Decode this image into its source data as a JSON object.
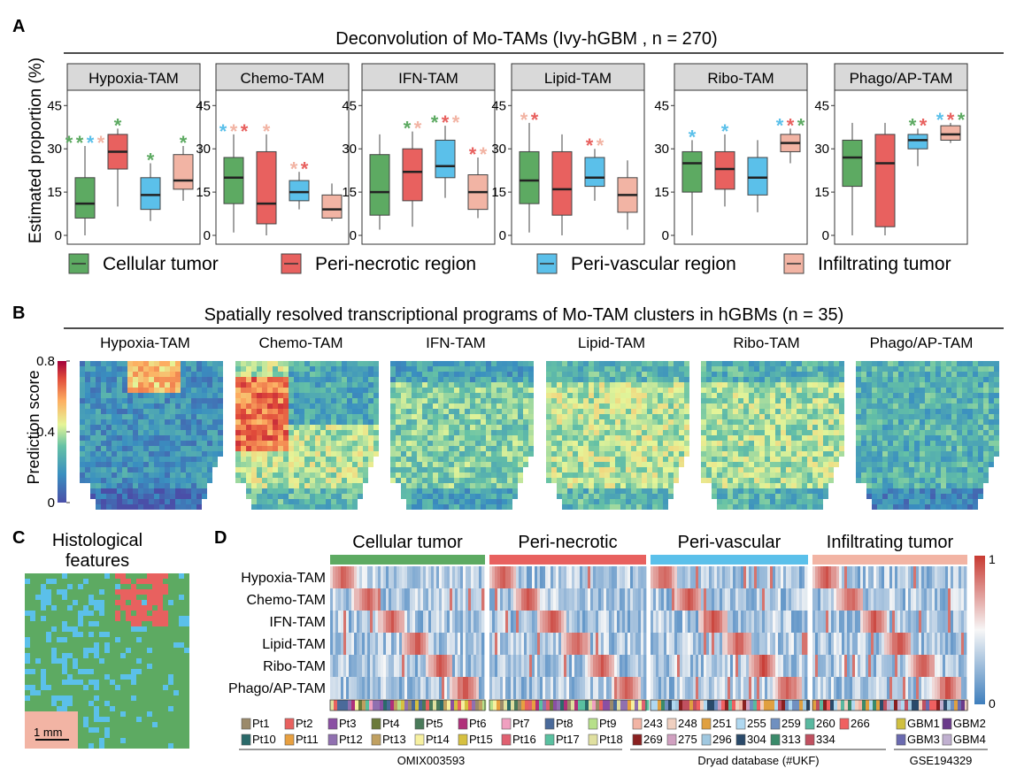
{
  "panel_labels": {
    "a": "A",
    "b": "B",
    "c": "C",
    "d": "D"
  },
  "colors": {
    "cellular": "#5daa62",
    "peri_necrotic": "#e8615f",
    "peri_vascular": "#5bc0ea",
    "infiltrating": "#f2b4a4",
    "strip_bg": "#d9d9d9",
    "heat_hi": "#c83a32",
    "heat_mid": "#f7f7f7",
    "heat_lo": "#3f7fbd"
  },
  "chart_data": [
    {
      "type": "box",
      "title": "Deconvolution of Mo-TAMs (Ivy-hGBM , n = 270)",
      "ylabel": "Estimated proportion (%)",
      "ylim": [
        0,
        50
      ],
      "yticks": [
        "0",
        "15",
        "30",
        "45"
      ],
      "groups": [
        "Cellular tumor",
        "Peri-necrotic region",
        "Peri-vascular region",
        "Infiltrating tumor"
      ],
      "facets": [
        {
          "name": "Hypoxia-TAM",
          "boxes": [
            {
              "min": 0,
              "q1": 6,
              "med": 11,
              "q3": 20,
              "max": 31
            },
            {
              "min": 10,
              "q1": 23,
              "med": 29,
              "q3": 35,
              "max": 37
            },
            {
              "min": 5,
              "q1": 9,
              "med": 14,
              "q3": 20,
              "max": 25
            },
            {
              "min": 12,
              "q1": 16,
              "med": 19,
              "q3": 28,
              "max": 31
            }
          ],
          "stars": [
            [
              "peri_necrotic_g",
              "cellular",
              "peri_vascular",
              "infiltrating"
            ],
            [
              "cellular"
            ],
            [
              "cellular"
            ],
            [
              "cellular"
            ]
          ]
        },
        {
          "name": "Chemo-TAM",
          "boxes": [
            {
              "min": 1,
              "q1": 11,
              "med": 20,
              "q3": 27,
              "max": 35
            },
            {
              "min": 0,
              "q1": 4,
              "med": 11,
              "q3": 29,
              "max": 35
            },
            {
              "min": 9,
              "q1": 12,
              "med": 15,
              "q3": 19,
              "max": 22
            },
            {
              "min": 5,
              "q1": 6,
              "med": 9,
              "q3": 14,
              "max": 18
            }
          ],
          "stars": [
            [
              "peri_vascular",
              "infiltrating",
              "peri_necrotic"
            ],
            [
              "infiltrating"
            ],
            [
              "infiltrating",
              "peri_necrotic"
            ],
            []
          ]
        },
        {
          "name": "IFN-TAM",
          "boxes": [
            {
              "min": 2,
              "q1": 7,
              "med": 15,
              "q3": 28,
              "max": 35
            },
            {
              "min": 3,
              "q1": 12,
              "med": 22,
              "q3": 30,
              "max": 36
            },
            {
              "min": 13,
              "q1": 20,
              "med": 24,
              "q3": 33,
              "max": 38
            },
            {
              "min": 6,
              "q1": 9,
              "med": 15,
              "q3": 21,
              "max": 27
            }
          ],
          "stars": [
            [],
            [
              "cellular",
              "infiltrating"
            ],
            [
              "cellular",
              "peri_necrotic",
              "infiltrating"
            ],
            [
              "peri_necrotic",
              "infiltrating"
            ]
          ]
        },
        {
          "name": "Lipid-TAM",
          "boxes": [
            {
              "min": 1,
              "q1": 11,
              "med": 19,
              "q3": 29,
              "max": 39
            },
            {
              "min": 0,
              "q1": 7,
              "med": 16,
              "q3": 29,
              "max": 35
            },
            {
              "min": 12,
              "q1": 17,
              "med": 20,
              "q3": 27,
              "max": 30
            },
            {
              "min": 2,
              "q1": 8,
              "med": 14,
              "q3": 20,
              "max": 26
            }
          ],
          "stars": [
            [
              "infiltrating",
              "peri_necrotic"
            ],
            [],
            [
              "peri_necrotic",
              "infiltrating"
            ],
            []
          ]
        },
        {
          "name": "Ribo-TAM",
          "boxes": [
            {
              "min": 0,
              "q1": 15,
              "med": 25,
              "q3": 29,
              "max": 33
            },
            {
              "min": 10,
              "q1": 16,
              "med": 23,
              "q3": 29,
              "max": 35
            },
            {
              "min": 8,
              "q1": 14,
              "med": 20,
              "q3": 27,
              "max": 33
            },
            {
              "min": 25,
              "q1": 29,
              "med": 32,
              "q3": 35,
              "max": 37
            }
          ],
          "stars": [
            [
              "peri_vascular"
            ],
            [
              "peri_vascular"
            ],
            [],
            [
              "peri_vascular",
              "peri_necrotic",
              "cellular"
            ]
          ]
        },
        {
          "name": "Phago/AP-TAM",
          "boxes": [
            {
              "min": 0,
              "q1": 17,
              "med": 27,
              "q3": 33,
              "max": 39
            },
            {
              "min": 0,
              "q1": 3,
              "med": 25,
              "q3": 35,
              "max": 39
            },
            {
              "min": 24,
              "q1": 30,
              "med": 33,
              "q3": 35,
              "max": 37
            },
            {
              "min": 32,
              "q1": 33,
              "med": 35,
              "q3": 38,
              "max": 39
            }
          ],
          "stars": [
            [],
            [],
            [
              "cellular",
              "peri_necrotic"
            ],
            [
              "peri_vascular",
              "peri_necrotic",
              "cellular"
            ]
          ]
        }
      ]
    },
    {
      "type": "heatmap",
      "title": "Spatially resolved transcriptional programs of Mo-TAM clusters in hGBMs (n = 35)",
      "colorbar_label": "Prediction score",
      "colorbar_ticks": [
        "0",
        "0.4",
        "0.8"
      ],
      "maps": [
        "Hypoxia-TAM",
        "Chemo-TAM",
        "IFN-TAM",
        "Lipid-TAM",
        "Ribo-TAM",
        "Phago/AP-TAM"
      ],
      "mean_levels": [
        0.22,
        0.5,
        0.42,
        0.5,
        0.48,
        0.33
      ]
    },
    {
      "type": "heatmap",
      "title": "",
      "regions": [
        "Cellular tumor",
        "Peri-necrotic",
        "Peri-vascular",
        "Infiltrating tumor"
      ],
      "rows": [
        "Hypoxia-TAM",
        "Chemo-TAM",
        "IFN-TAM",
        "Lipid-TAM",
        "Ribo-TAM",
        "Phago/AP-TAM"
      ],
      "colorbar_ticks": [
        "0",
        "1"
      ]
    }
  ],
  "panel_c": {
    "title_line1": "Histological",
    "title_line2": "features",
    "scale_label": "1 mm"
  },
  "legend_d": {
    "omix_items": [
      "Pt1",
      "Pt2",
      "Pt3",
      "Pt4",
      "Pt5",
      "Pt6",
      "Pt7",
      "Pt8",
      "Pt9",
      "Pt10",
      "Pt11",
      "Pt12",
      "Pt13",
      "Pt14",
      "Pt15",
      "Pt16",
      "Pt17",
      "Pt18"
    ],
    "omix_colors": [
      "#9b8a6a",
      "#e8615f",
      "#8a4fa3",
      "#6b7a3a",
      "#4a7a5a",
      "#b0307a",
      "#f0a0c0",
      "#4a6a9a",
      "#b7e08a",
      "#2a6a6a",
      "#e8a040",
      "#9070b0",
      "#c0a060",
      "#f6f0a0",
      "#d6c040",
      "#e06070",
      "#5ac0a0",
      "#e0e0a0"
    ],
    "dryad_items": [
      "243",
      "248",
      "251",
      "255",
      "259",
      "260",
      "266",
      "269",
      "275",
      "296",
      "304",
      "313",
      "334"
    ],
    "dryad_colors": [
      "#f2b4a4",
      "#f0d0c0",
      "#e0a040",
      "#b0d8f0",
      "#7090c0",
      "#5ab8a0",
      "#f06060",
      "#8a2020",
      "#d0a0c0",
      "#a0c8e0",
      "#2a4a6a",
      "#3a8a6a",
      "#c05060"
    ],
    "gse_items": [
      "GBM1",
      "GBM2",
      "GBM3",
      "GBM4"
    ],
    "gse_colors": [
      "#d0c040",
      "#6a3a8a",
      "#6a6ab0",
      "#c0b0d0"
    ],
    "source_omix": "OMIX003593",
    "source_dryad": "Dryad database (#UKF)",
    "source_gse": "GSE194329"
  }
}
